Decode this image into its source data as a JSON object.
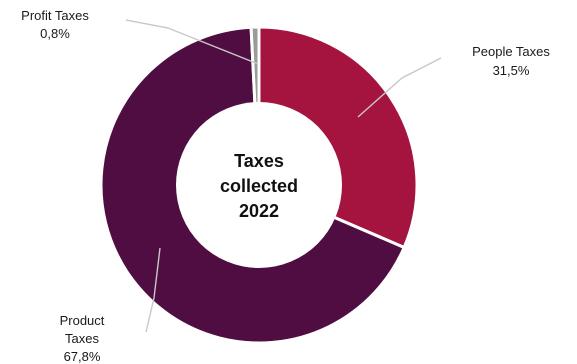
{
  "chart_data": {
    "type": "pie",
    "variant": "donut",
    "center_label": [
      "Taxes",
      "collected",
      "2022"
    ],
    "series": [
      {
        "name": "People Taxes",
        "value_label": "31,5%",
        "value": 31.5,
        "color": "#a5133f"
      },
      {
        "name": "Product Taxes",
        "value_label": "67,8%",
        "value": 67.8,
        "color": "#4f0d42"
      },
      {
        "name": "Profit Taxes",
        "value_label": "0,8%",
        "value": 0.8,
        "color": "#9a9a9a"
      }
    ]
  }
}
